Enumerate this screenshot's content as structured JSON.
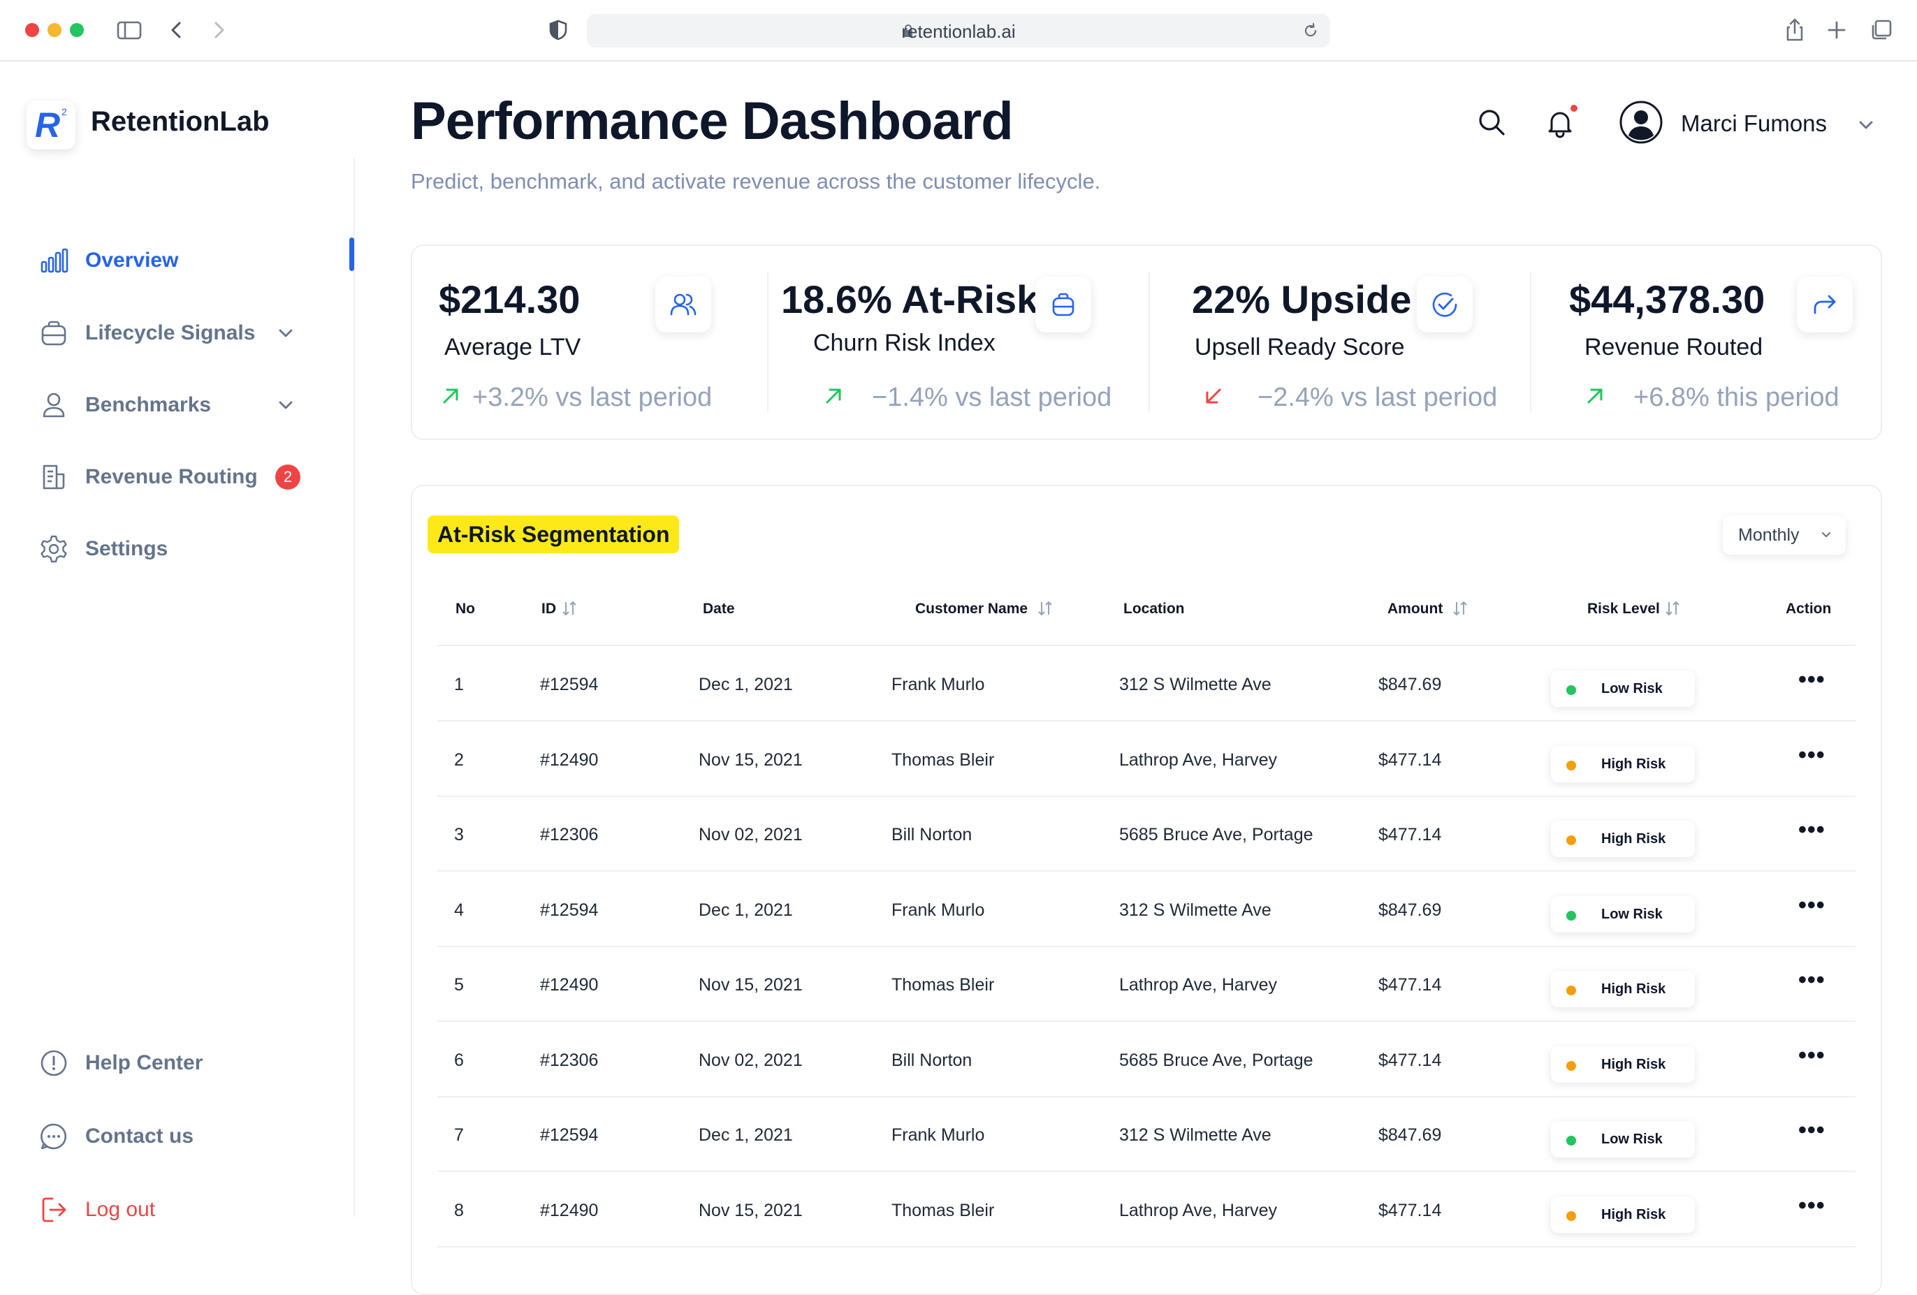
{
  "browser": {
    "url": "retentionlab.ai"
  },
  "sidebar": {
    "brand": "RetentionLab",
    "logo_letter": "R",
    "logo_superscript": "2",
    "items": [
      {
        "label": "Overview",
        "icon": "bar-chart-icon",
        "active": true
      },
      {
        "label": "Lifecycle Signals",
        "icon": "lifecycle-icon",
        "has_dropdown": true
      },
      {
        "label": "Benchmarks",
        "icon": "user-icon",
        "has_dropdown": true
      },
      {
        "label": "Revenue Routing",
        "icon": "document-icon",
        "badge": "2"
      },
      {
        "label": "Settings",
        "icon": "gear-icon"
      }
    ],
    "bottom_items": [
      {
        "label": "Help Center",
        "icon": "info-icon"
      },
      {
        "label": "Contact us",
        "icon": "chat-icon"
      },
      {
        "label": "Log out",
        "icon": "logout-icon"
      }
    ]
  },
  "header": {
    "title": "Performance Dashboard",
    "subtitle": "Predict, benchmark, and activate revenue across the customer lifecycle.",
    "user_name": "Marci Fumons"
  },
  "kpis": [
    {
      "value": "$214.30",
      "label": "Average LTV",
      "trend": "+3.2% vs last period",
      "direction": "up",
      "icon": "users-icon"
    },
    {
      "value": "18.6% At-Risk",
      "label": "Churn Risk Index",
      "trend": "−1.4% vs last period",
      "direction": "up",
      "icon": "bag-icon"
    },
    {
      "value": "22% Upside",
      "label": "Upsell Ready Score",
      "trend": "−2.4% vs last period",
      "direction": "down",
      "icon": "check-circle-icon"
    },
    {
      "value": "$44,378.30",
      "label": "Revenue Routed",
      "trend": "+6.8% this period",
      "direction": "up",
      "icon": "share-arrow-icon"
    }
  ],
  "colors": {
    "accent": "#2563eb",
    "up": "#22c55e",
    "down": "#ef4444",
    "low_risk": "#22c55e",
    "high_risk": "#f59e0b",
    "highlight": "#fde918"
  },
  "table": {
    "title": "At-Risk Segmentation",
    "period_select": "Monthly",
    "columns": [
      "No",
      "ID",
      "Date",
      "Customer Name",
      "Location",
      "Amount",
      "Risk Level",
      "Action"
    ],
    "rows": [
      {
        "no": "1",
        "id": "#12594",
        "date": "Dec 1, 2021",
        "name": "Frank Murlo",
        "location": "312 S Wilmette Ave",
        "amount": "$847.69",
        "risk": "Low Risk"
      },
      {
        "no": "2",
        "id": "#12490",
        "date": "Nov 15, 2021",
        "name": "Thomas  Bleir",
        "location": "Lathrop Ave, Harvey",
        "amount": "$477.14",
        "risk": "High Risk"
      },
      {
        "no": "3",
        "id": "#12306",
        "date": "Nov 02, 2021",
        "name": "Bill Norton",
        "location": "5685 Bruce Ave, Portage",
        "amount": "$477.14",
        "risk": "High Risk"
      },
      {
        "no": "4",
        "id": "#12594",
        "date": "Dec 1, 2021",
        "name": "Frank Murlo",
        "location": "312 S Wilmette Ave",
        "amount": "$847.69",
        "risk": "Low Risk"
      },
      {
        "no": "5",
        "id": "#12490",
        "date": "Nov 15, 2021",
        "name": "Thomas  Bleir",
        "location": "Lathrop Ave, Harvey",
        "amount": "$477.14",
        "risk": "High Risk"
      },
      {
        "no": "6",
        "id": "#12306",
        "date": "Nov 02, 2021",
        "name": "Bill Norton",
        "location": "5685 Bruce Ave, Portage",
        "amount": "$477.14",
        "risk": "High Risk"
      },
      {
        "no": "7",
        "id": "#12594",
        "date": "Dec 1, 2021",
        "name": "Frank Murlo",
        "location": "312 S Wilmette Ave",
        "amount": "$847.69",
        "risk": "Low Risk"
      },
      {
        "no": "8",
        "id": "#12490",
        "date": "Nov 15, 2021",
        "name": "Thomas  Bleir",
        "location": "Lathrop Ave, Harvey",
        "amount": "$477.14",
        "risk": "High Risk"
      }
    ],
    "action_glyph": "•••"
  }
}
